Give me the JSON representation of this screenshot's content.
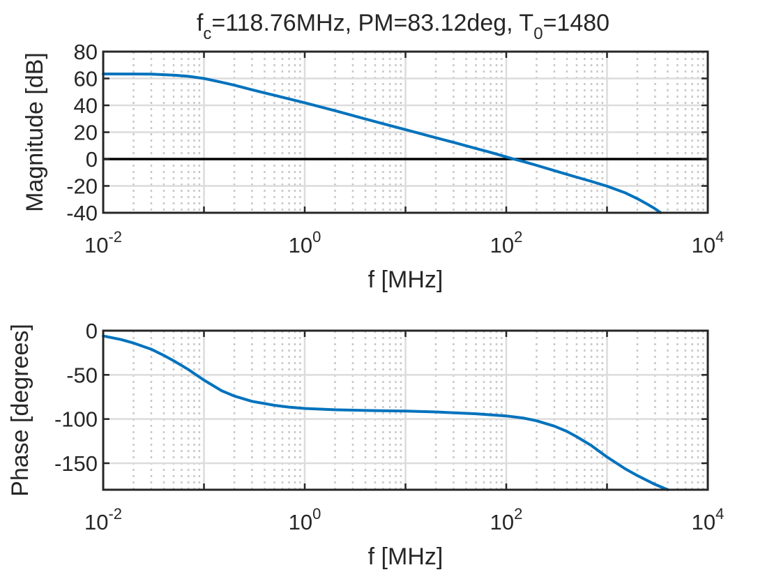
{
  "chart_data": {
    "title_parts": [
      "f",
      "c",
      "=118.76MHz, PM=83.12deg, T",
      "0",
      "=1480"
    ],
    "line_color": "#0072BD",
    "zero_line_color": "#000000",
    "grid": true,
    "xscale": "log",
    "xlim": [
      0.01,
      10000
    ],
    "x_ticks": [
      {
        "base": "10",
        "exp": "-2"
      },
      {
        "base": "10",
        "exp": "0"
      },
      {
        "base": "10",
        "exp": "2"
      },
      {
        "base": "10",
        "exp": "4"
      }
    ],
    "charts": [
      {
        "type": "line",
        "xlabel": "f [MHz]",
        "ylabel": "Magnitude [dB]",
        "ylim": [
          -40,
          80
        ],
        "yticks": [
          80,
          60,
          40,
          20,
          0,
          -20,
          -40
        ],
        "reference_line": 0,
        "series": [
          {
            "x": [
              0.01,
              0.02,
              0.03,
              0.05,
              0.07,
              0.1,
              0.15,
              0.2,
              0.3,
              0.5,
              0.7,
              1,
              2,
              3,
              5,
              7,
              10,
              20,
              30,
              50,
              70,
              100,
              118.76,
              150,
              200,
              300,
              500,
              700,
              1000,
              1500,
              2000,
              2500,
              3000,
              3400
            ],
            "y": [
              63.4,
              63.3,
              63.2,
              62.5,
              61.6,
              60,
              57.2,
              55,
              51.6,
              47.5,
              44.8,
              41.9,
              36,
              32.4,
              27.9,
              25,
              21.9,
              15.9,
              12.4,
              7.9,
              5,
              1.6,
              0,
              -2,
              -4.7,
              -8.6,
              -13.5,
              -16.6,
              -20.2,
              -25,
              -29.5,
              -33.5,
              -37,
              -39.9
            ]
          }
        ]
      },
      {
        "type": "line",
        "xlabel": "f [MHz]",
        "ylabel": "Phase [degrees]",
        "ylim": [
          -180,
          0
        ],
        "yticks": [
          0,
          -50,
          -100,
          -150
        ],
        "series": [
          {
            "x": [
              0.01,
              0.015,
              0.02,
              0.03,
              0.04,
              0.05,
              0.07,
              0.1,
              0.15,
              0.2,
              0.3,
              0.5,
              0.7,
              1,
              2,
              5,
              10,
              20,
              50,
              100,
              150,
              200,
              300,
              400,
              500,
              700,
              1000,
              1500,
              2000,
              3000,
              4000
            ],
            "y": [
              -6,
              -10,
              -14,
              -21,
              -28,
              -34,
              -44,
              -56,
              -68,
              -74,
              -80,
              -84.5,
              -86.5,
              -88,
              -89.5,
              -90.5,
              -91,
              -92,
              -94,
              -96.5,
              -99,
              -102,
              -108,
              -114,
              -120,
              -130,
              -143,
              -156,
              -164,
              -174,
              -180
            ]
          }
        ]
      }
    ]
  }
}
